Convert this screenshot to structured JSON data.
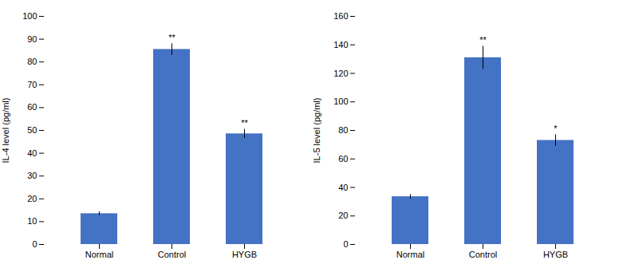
{
  "chart_data": [
    {
      "type": "bar",
      "categories": [
        "Normal",
        "Control",
        "HYGB"
      ],
      "values": [
        13.5,
        85.5,
        48.5
      ],
      "errors": [
        0.8,
        2.5,
        2.0
      ],
      "ylabel": "IL-4 level (pg/ml)",
      "ylim": [
        0,
        100
      ],
      "yticks": [
        0,
        10,
        20,
        30,
        40,
        50,
        60,
        70,
        80,
        90,
        100
      ],
      "annotations": [
        null,
        "**",
        "**"
      ],
      "color": "#4472C4",
      "grid": false
    },
    {
      "type": "bar",
      "categories": [
        "Normal",
        "Control",
        "HYGB"
      ],
      "values": [
        33.5,
        131.0,
        73.0
      ],
      "errors": [
        1.5,
        8.0,
        4.0
      ],
      "ylabel": "IL-5 level (pg/ml)",
      "ylim": [
        0,
        160
      ],
      "yticks": [
        0,
        20,
        40,
        60,
        80,
        100,
        120,
        140,
        160
      ],
      "annotations": [
        null,
        "**",
        "*"
      ],
      "color": "#4472C4",
      "grid": false
    }
  ]
}
